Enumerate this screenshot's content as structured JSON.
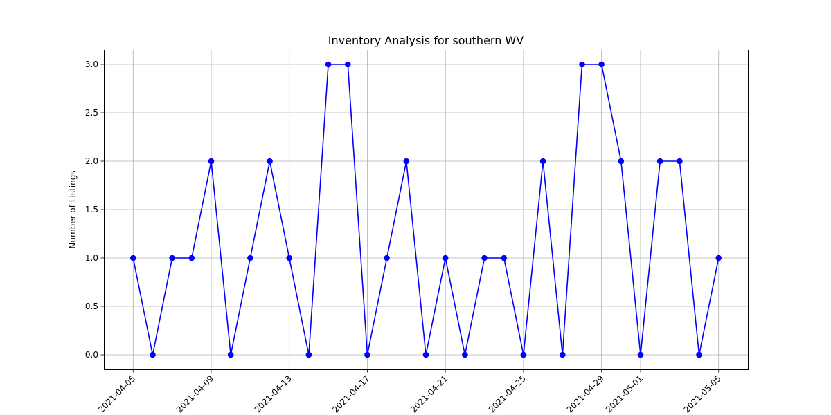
{
  "chart_data": {
    "type": "line",
    "title": "Inventory Analysis for southern WV",
    "xlabel": "",
    "ylabel": "Number of Listings",
    "x": [
      "2021-04-05",
      "2021-04-06",
      "2021-04-07",
      "2021-04-08",
      "2021-04-09",
      "2021-04-10",
      "2021-04-11",
      "2021-04-12",
      "2021-04-13",
      "2021-04-14",
      "2021-04-15",
      "2021-04-16",
      "2021-04-17",
      "2021-04-18",
      "2021-04-19",
      "2021-04-20",
      "2021-04-21",
      "2021-04-22",
      "2021-04-23",
      "2021-04-24",
      "2021-04-25",
      "2021-04-26",
      "2021-04-27",
      "2021-04-28",
      "2021-04-29",
      "2021-04-30",
      "2021-05-01",
      "2021-05-02",
      "2021-05-03",
      "2021-05-04",
      "2021-05-05"
    ],
    "series": [
      {
        "values": [
          1,
          0,
          1,
          1,
          2,
          0,
          1,
          2,
          1,
          0,
          3,
          3,
          0,
          1,
          2,
          0,
          1,
          0,
          1,
          1,
          0,
          2,
          0,
          3,
          3,
          2,
          0,
          2,
          2,
          0,
          1
        ],
        "color": "#0000ff",
        "marker": "circle"
      }
    ],
    "xticks": [
      "2021-04-05",
      "2021-04-09",
      "2021-04-13",
      "2021-04-17",
      "2021-04-21",
      "2021-04-25",
      "2021-04-29",
      "2021-05-01",
      "2021-05-05"
    ],
    "yticks": [
      "0.0",
      "0.5",
      "1.0",
      "1.5",
      "2.0",
      "2.5",
      "3.0"
    ],
    "ylim": [
      -0.15,
      3.15
    ],
    "grid": true
  }
}
